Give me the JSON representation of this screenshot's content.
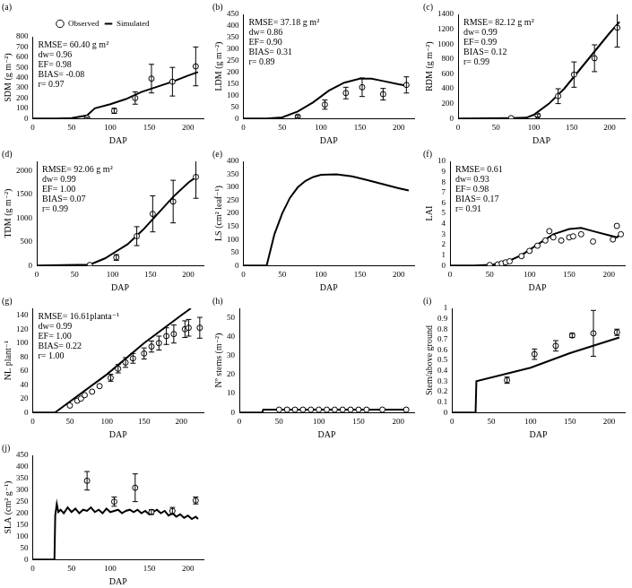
{
  "chart_data": [
    {
      "type": "line",
      "title": "(a)",
      "x_label": "DAP",
      "y_label": "SDM (g m⁻²)",
      "xlim": [
        0,
        220
      ],
      "xticks": [
        0,
        50,
        100,
        150,
        200
      ],
      "ylim": [
        0,
        800
      ],
      "yticks": [
        0,
        100,
        200,
        300,
        400,
        500,
        600,
        700,
        800
      ],
      "grid": false,
      "legend": "top",
      "annotations": [
        "RMSE= 60.40 g m²",
        "dw= 0.96",
        "EF= 0.98",
        "BIAS= -0.08",
        "r= 0.97"
      ],
      "series": [
        {
          "name": "Observed",
          "type": "scatter",
          "marker": "circle",
          "color": "#000000",
          "x": [
            70,
            105,
            132,
            153,
            180,
            210
          ],
          "values": [
            5,
            75,
            200,
            390,
            360,
            510
          ],
          "errors": [
            5,
            25,
            60,
            140,
            140,
            190
          ]
        },
        {
          "name": "Simulated",
          "type": "line",
          "line_style": "solid",
          "color": "#000000",
          "x": [
            0,
            30,
            50,
            70,
            80,
            100,
            120,
            140,
            160,
            180,
            200,
            213
          ],
          "values": [
            0,
            0,
            5,
            30,
            100,
            140,
            190,
            260,
            310,
            360,
            420,
            455
          ]
        }
      ]
    },
    {
      "type": "line",
      "title": "(b)",
      "x_label": "DAP",
      "y_label": "LDM (g m⁻²)",
      "xlim": [
        0,
        220
      ],
      "xticks": [
        0,
        50,
        100,
        150,
        200
      ],
      "ylim": [
        0,
        450
      ],
      "yticks": [
        0,
        50,
        100,
        150,
        200,
        250,
        300,
        350,
        400,
        450
      ],
      "grid": false,
      "annotations": [
        "RMSE= 37.18 g m²",
        "dw= 0.86",
        "EF= 0.90",
        "BIAS= 0.31",
        "r= 0.89"
      ],
      "series": [
        {
          "name": "Observed",
          "type": "scatter",
          "marker": "circle",
          "color": "#000000",
          "x": [
            70,
            105,
            132,
            153,
            180,
            210
          ],
          "values": [
            8,
            60,
            110,
            135,
            105,
            145
          ],
          "errors": [
            5,
            20,
            25,
            40,
            25,
            35
          ]
        },
        {
          "name": "Simulated",
          "type": "line",
          "line_style": "solid",
          "color": "#000000",
          "x": [
            0,
            30,
            50,
            70,
            90,
            110,
            130,
            150,
            165,
            180,
            200,
            213
          ],
          "values": [
            0,
            0,
            5,
            30,
            70,
            120,
            155,
            172,
            172,
            162,
            148,
            140
          ]
        }
      ]
    },
    {
      "type": "line",
      "title": "(c)",
      "x_label": "DAP",
      "y_label": "RDM (g m⁻²)",
      "xlim": [
        0,
        220
      ],
      "xticks": [
        0,
        50,
        100,
        150,
        200
      ],
      "ylim": [
        0,
        1400
      ],
      "yticks": [
        0,
        200,
        400,
        600,
        800,
        1000,
        1200,
        1400
      ],
      "grid": false,
      "annotations": [
        "RMSE= 82.12 g m²",
        "dw= 0.99",
        "EF= 0.99",
        "BIAS= 0.12",
        "r= 0.99"
      ],
      "series": [
        {
          "name": "Observed",
          "type": "scatter",
          "marker": "circle",
          "color": "#000000",
          "x": [
            70,
            105,
            132,
            153,
            180,
            210
          ],
          "values": [
            5,
            40,
            300,
            590,
            810,
            1220
          ],
          "errors": [
            null,
            20,
            100,
            170,
            180,
            260
          ]
        },
        {
          "name": "Simulated",
          "type": "line",
          "line_style": "solid",
          "color": "#000000",
          "x": [
            0,
            70,
            90,
            100,
            120,
            140,
            160,
            180,
            200,
            213
          ],
          "values": [
            0,
            5,
            10,
            50,
            200,
            400,
            650,
            900,
            1150,
            1300
          ]
        }
      ]
    },
    {
      "type": "line",
      "title": "(d)",
      "x_label": "DAP",
      "y_label": "TDM (g m⁻²)",
      "xlim": [
        0,
        220
      ],
      "xticks": [
        0,
        50,
        100,
        150,
        200
      ],
      "ylim": [
        0,
        2200
      ],
      "yticks": [
        0,
        500,
        1000,
        1500,
        2000
      ],
      "grid": false,
      "annotations": [
        "RMSE= 92.06 g m²",
        "dw= 0.99",
        "EF= 1.00",
        "BIAS= 0.07",
        "r= 0.99"
      ],
      "series": [
        {
          "name": "Observed",
          "type": "scatter",
          "marker": "circle",
          "color": "#000000",
          "x": [
            70,
            105,
            132,
            153,
            180,
            210
          ],
          "values": [
            10,
            170,
            620,
            1090,
            1350,
            1870
          ],
          "errors": [
            null,
            60,
            200,
            380,
            450,
            450
          ]
        },
        {
          "name": "Simulated",
          "type": "line",
          "line_style": "solid",
          "color": "#000000",
          "x": [
            0,
            70,
            90,
            100,
            120,
            140,
            160,
            180,
            200,
            213
          ],
          "values": [
            0,
            20,
            150,
            250,
            450,
            750,
            1100,
            1450,
            1750,
            1900
          ]
        }
      ]
    },
    {
      "type": "line",
      "title": "(e)",
      "x_label": "DAP",
      "y_label": "LS (cm² leaf⁻¹)",
      "xlim": [
        0,
        220
      ],
      "xticks": [
        0,
        50,
        100,
        150,
        200
      ],
      "ylim": [
        0,
        400
      ],
      "yticks": [
        0,
        50,
        100,
        150,
        200,
        250,
        300,
        350,
        400
      ],
      "grid": false,
      "series": [
        {
          "name": "Simulated",
          "type": "line",
          "line_style": "solid",
          "color": "#000000",
          "x": [
            0,
            30,
            40,
            50,
            60,
            70,
            80,
            90,
            100,
            120,
            140,
            160,
            180,
            200,
            213
          ],
          "values": [
            0,
            0,
            120,
            200,
            260,
            300,
            325,
            340,
            348,
            350,
            342,
            328,
            312,
            297,
            288
          ]
        }
      ]
    },
    {
      "type": "line",
      "title": "(f)",
      "x_label": "DAP",
      "y_label": "LAI",
      "xlim": [
        0,
        220
      ],
      "xticks": [
        0,
        50,
        100,
        150,
        200
      ],
      "ylim": [
        0,
        10
      ],
      "yticks": [
        0,
        1,
        2,
        3,
        4,
        5,
        6,
        7,
        8,
        9,
        10
      ],
      "grid": false,
      "annotations": [
        "RMSE= 0.61",
        "dw= 0.93",
        "EF= 0.98",
        "BIAS= 0.17",
        "r= 0.91"
      ],
      "series": [
        {
          "name": "Observed",
          "type": "scatter",
          "marker": "circle",
          "color": "#000000",
          "x": [
            50,
            60,
            65,
            70,
            75,
            90,
            100,
            110,
            120,
            125,
            130,
            140,
            150,
            155,
            165,
            180,
            205,
            210,
            215
          ],
          "values": [
            0.05,
            0.1,
            0.2,
            0.3,
            0.4,
            0.9,
            1.4,
            1.9,
            2.4,
            3.3,
            2.7,
            2.4,
            2.7,
            2.8,
            3.0,
            2.3,
            2.5,
            3.8,
            3.0
          ]
        },
        {
          "name": "Simulated",
          "type": "line",
          "line_style": "solid",
          "color": "#000000",
          "x": [
            0,
            30,
            50,
            70,
            90,
            110,
            130,
            150,
            165,
            180,
            200,
            210,
            213
          ],
          "values": [
            0,
            0,
            0.05,
            0.3,
            1.0,
            2.0,
            3.0,
            3.5,
            3.6,
            3.3,
            2.9,
            2.7,
            2.9
          ]
        }
      ]
    },
    {
      "type": "line",
      "title": "(g)",
      "x_label": "DAP",
      "y_label": "NL plant⁻¹",
      "xlim": [
        0,
        230
      ],
      "xticks": [
        0,
        50,
        100,
        150,
        200
      ],
      "ylim": [
        0,
        150
      ],
      "yticks": [
        0,
        20,
        40,
        60,
        80,
        100,
        120,
        140
      ],
      "grid": false,
      "annotations": [
        "RMSE= 16.61planta⁻¹",
        "dw= 0.99",
        "EF= 1.00",
        "BIAS= 0.22",
        "r= 1.00"
      ],
      "series": [
        {
          "name": "Observed",
          "type": "scatter",
          "marker": "circle",
          "color": "#000000",
          "x": [
            50,
            60,
            65,
            70,
            80,
            90,
            105,
            115,
            125,
            135,
            150,
            160,
            170,
            180,
            190,
            205,
            210,
            225
          ],
          "values": [
            10,
            17,
            20,
            25,
            30,
            38,
            50,
            63,
            72,
            78,
            85,
            95,
            100,
            110,
            113,
            120,
            122,
            122
          ],
          "errors": [
            null,
            null,
            null,
            null,
            null,
            null,
            5,
            6,
            7,
            7,
            8,
            8,
            10,
            12,
            13,
            12,
            12,
            15
          ]
        },
        {
          "name": "Simulated",
          "type": "line",
          "line_style": "solid",
          "color": "#000000",
          "x": [
            0,
            30,
            100,
            150,
            200,
            213
          ],
          "values": [
            0,
            0,
            55,
            100,
            140,
            150
          ]
        }
      ]
    },
    {
      "type": "line",
      "title": "(h)",
      "x_label": "DAP",
      "y_label": "Nº stems (m⁻²)",
      "xlim": [
        0,
        220
      ],
      "xticks": [
        0,
        50,
        100,
        150,
        200
      ],
      "ylim": [
        0,
        55
      ],
      "yticks": [
        0,
        10,
        20,
        30,
        40,
        50
      ],
      "grid": false,
      "series": [
        {
          "name": "Observed",
          "type": "scatter",
          "marker": "circle",
          "color": "#000000",
          "x": [
            50,
            60,
            70,
            80,
            90,
            100,
            110,
            120,
            130,
            140,
            150,
            160,
            180,
            210
          ],
          "values": [
            1.5,
            1.5,
            1.5,
            1.5,
            1.5,
            1.5,
            1.5,
            1.5,
            1.5,
            1.5,
            1.5,
            1.5,
            1.5,
            1.5
          ]
        },
        {
          "name": "Simulated",
          "type": "line",
          "line_style": "solid",
          "color": "#000000",
          "x": [
            0,
            29,
            30,
            213
          ],
          "values": [
            0,
            0,
            1.5,
            1.5
          ]
        }
      ]
    },
    {
      "type": "line",
      "title": "(i)",
      "x_label": "DAP",
      "y_label": "Stem/above ground",
      "xlim": [
        0,
        220
      ],
      "xticks": [
        0,
        50,
        100,
        150,
        200
      ],
      "ylim": [
        0,
        1
      ],
      "yticks": [
        0,
        0.1,
        0.2,
        0.3,
        0.4,
        0.5,
        0.6,
        0.7,
        0.8,
        0.9,
        1
      ],
      "grid": false,
      "series": [
        {
          "name": "Observed",
          "type": "scatter",
          "marker": "circle",
          "color": "#000000",
          "x": [
            70,
            105,
            132,
            153,
            180,
            210
          ],
          "values": [
            0.31,
            0.56,
            0.64,
            0.74,
            0.76,
            0.77
          ],
          "errors": [
            0.03,
            0.05,
            0.05,
            0.02,
            0.22,
            0.03
          ]
        },
        {
          "name": "Simulated",
          "type": "line",
          "line_style": "solid",
          "color": "#000000",
          "x": [
            0,
            30,
            31,
            100,
            150,
            213
          ],
          "values": [
            0,
            0,
            0.3,
            0.43,
            0.57,
            0.72
          ]
        }
      ]
    },
    {
      "type": "line",
      "title": "(j)",
      "x_label": "DAP",
      "y_label": "SLA (cm² g⁻¹)",
      "xlim": [
        0,
        220
      ],
      "xticks": [
        0,
        50,
        100,
        150,
        200
      ],
      "ylim": [
        0,
        450
      ],
      "yticks": [
        0,
        50,
        100,
        150,
        200,
        250,
        300,
        350,
        400,
        450
      ],
      "grid": false,
      "series": [
        {
          "name": "Observed",
          "type": "scatter",
          "marker": "circle",
          "color": "#000000",
          "x": [
            70,
            105,
            132,
            153,
            180,
            210
          ],
          "values": [
            340,
            250,
            310,
            205,
            210,
            255
          ],
          "errors": [
            40,
            20,
            60,
            10,
            15,
            15
          ]
        },
        {
          "name": "Simulated",
          "type": "line",
          "line_style": "solid",
          "color": "#000000",
          "x": [
            0,
            28,
            29,
            31,
            33,
            36,
            40,
            45,
            50,
            55,
            60,
            65,
            70,
            75,
            80,
            85,
            90,
            95,
            100,
            105,
            110,
            115,
            120,
            125,
            130,
            135,
            140,
            145,
            150,
            155,
            160,
            165,
            170,
            175,
            180,
            185,
            190,
            195,
            200,
            205,
            210,
            213
          ],
          "values": [
            0,
            0,
            190,
            240,
            205,
            215,
            200,
            225,
            205,
            220,
            200,
            215,
            210,
            225,
            205,
            215,
            200,
            220,
            205,
            210,
            215,
            200,
            210,
            215,
            205,
            215,
            200,
            210,
            195,
            205,
            215,
            200,
            210,
            190,
            200,
            185,
            195,
            180,
            190,
            175,
            185,
            175
          ]
        }
      ]
    }
  ]
}
